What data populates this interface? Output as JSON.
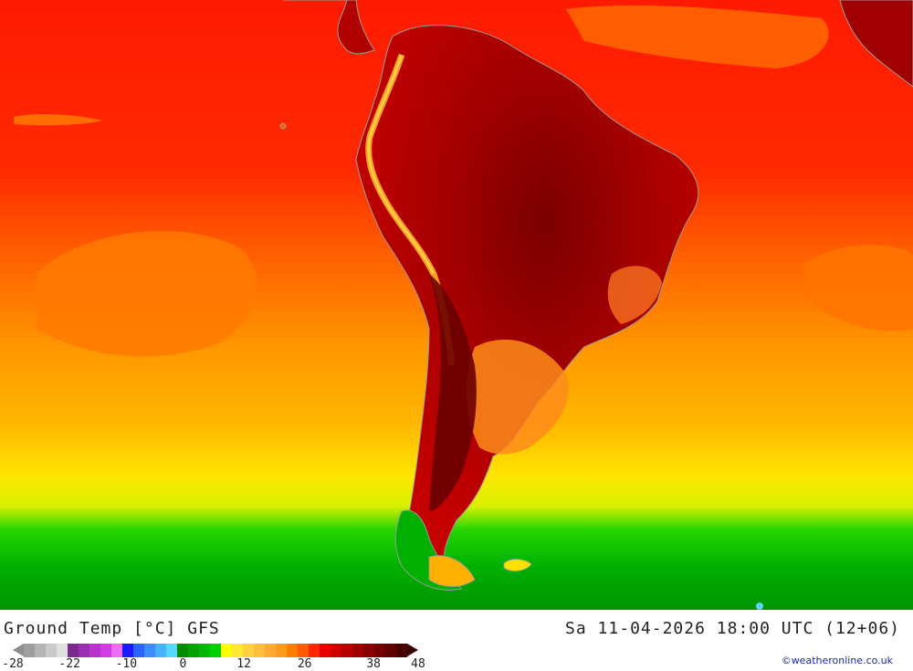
{
  "map": {
    "region": "South America",
    "variable": "Ground Temperature"
  },
  "footer": {
    "title": "Ground Temp [°C] GFS",
    "datetime": "Sa 11-04-2026 18:00 UTC (12+06)",
    "credit": "©weatheronline.co.uk"
  },
  "legend": {
    "tick_labels": [
      "-28",
      "-22",
      "-10",
      "0",
      "12",
      "26",
      "38",
      "48"
    ],
    "colors": [
      "#9e9e9e",
      "#b4b4b4",
      "#cacaca",
      "#e0e0e0",
      "#7a2a8c",
      "#9a2fb0",
      "#b735cc",
      "#d33ce0",
      "#ee6cf2",
      "#1a1aff",
      "#2a64ff",
      "#3a8cff",
      "#47b2ff",
      "#55d8ff",
      "#008c00",
      "#00a200",
      "#00b800",
      "#00d000",
      "#ffff00",
      "#ffe838",
      "#ffd040",
      "#ffbe3a",
      "#ffaa30",
      "#ff9a20",
      "#ff7e00",
      "#ff5a00",
      "#ff2800",
      "#e80000",
      "#d00000",
      "#b80000",
      "#a00000",
      "#8a0000",
      "#740000",
      "#5e0000",
      "#480000"
    ],
    "low_arrow_color": "#8c8c8c",
    "high_arrow_color": "#3a0000"
  }
}
